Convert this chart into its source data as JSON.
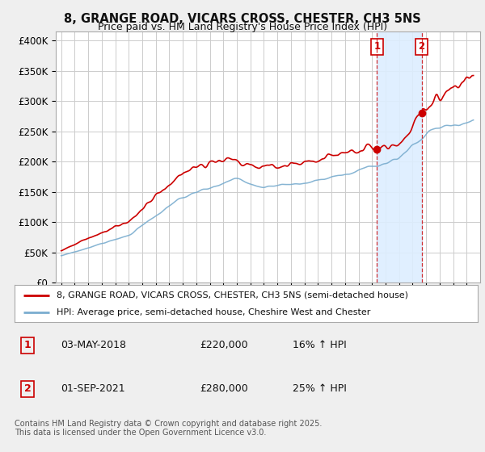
{
  "title": "8, GRANGE ROAD, VICARS CROSS, CHESTER, CH3 5NS",
  "subtitle": "Price paid vs. HM Land Registry's House Price Index (HPI)",
  "red_label": "8, GRANGE ROAD, VICARS CROSS, CHESTER, CH3 5NS (semi-detached house)",
  "blue_label": "HPI: Average price, semi-detached house, Cheshire West and Chester",
  "ylabel_ticks": [
    "£0",
    "£50K",
    "£100K",
    "£150K",
    "£200K",
    "£250K",
    "£300K",
    "£350K",
    "£400K"
  ],
  "ytick_values": [
    0,
    50000,
    100000,
    150000,
    200000,
    250000,
    300000,
    350000,
    400000
  ],
  "ylim": [
    0,
    415000
  ],
  "table_rows": [
    {
      "num": "1",
      "date": "03-MAY-2018",
      "price": "£220,000",
      "hpi": "16% ↑ HPI"
    },
    {
      "num": "2",
      "date": "01-SEP-2021",
      "price": "£280,000",
      "hpi": "25% ↑ HPI"
    }
  ],
  "sale1_year": 2018.37,
  "sale1_price": 220000,
  "sale2_year": 2021.67,
  "sale2_price": 280000,
  "footer": "Contains HM Land Registry data © Crown copyright and database right 2025.\nThis data is licensed under the Open Government Licence v3.0.",
  "bg_color": "#efefef",
  "plot_bg_color": "#ffffff",
  "red_color": "#cc0000",
  "blue_color": "#7aadcf",
  "shade_color": "#ddeeff",
  "grid_color": "#cccccc",
  "start_year": 1995,
  "end_year": 2025
}
